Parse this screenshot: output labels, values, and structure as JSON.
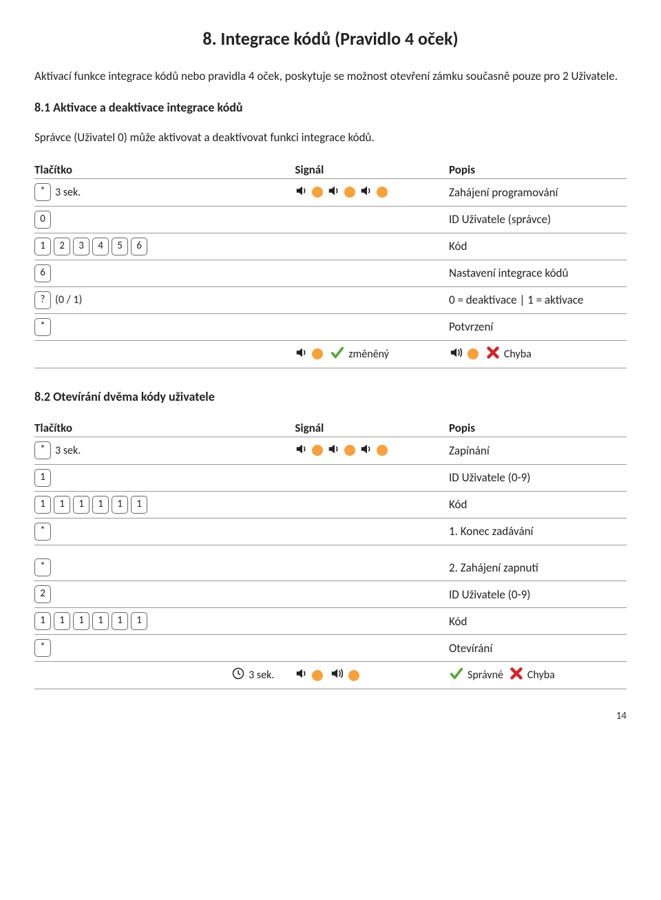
{
  "colors": {
    "dot": "#f7a13d",
    "check": "#5aa63a",
    "cross": "#d2232a",
    "border": "#999999",
    "text": "#222222"
  },
  "page_number": "14",
  "heading": "8. Integrace kódů (Pravidlo 4 oček)",
  "intro": "Aktivací funkce integrace kódů nebo pravidla 4 oček, poskytuje se možnost otevření zámku současně pouze pro 2 Uživatele.",
  "sub81_title": "8.1 Aktivace a deaktivace integrace kódů",
  "sub81_text": "Správce (Uživatel 0) může aktivovat a deaktivovat funkci integrace kódů.",
  "sub82_title": "8.2 Otevírání dvěma kódy uživatele",
  "headers": {
    "button": "Tlačítko",
    "signal": "Signál",
    "description": "Popis"
  },
  "words": {
    "changed": "změněný",
    "error": "Chyba",
    "correct": "Správné",
    "sec3": "3 sek.",
    "zeroone": "(0 / 1)"
  },
  "table1": [
    {
      "keys": [
        "*"
      ],
      "suffix": "3 sek.",
      "sig": "3beep",
      "desc": "Zahájení programování"
    },
    {
      "keys": [
        "0"
      ],
      "desc": "ID Uživatele (správce)"
    },
    {
      "keys": [
        "1",
        "2",
        "3",
        "4",
        "5",
        "6"
      ],
      "desc": "Kód"
    },
    {
      "keys": [
        "6"
      ],
      "desc": "Nastavení integrace kódů"
    },
    {
      "keys": [
        "?"
      ],
      "suffix": "(0 / 1)",
      "desc": "0 = deaktivace | 1 = aktivace"
    },
    {
      "keys": [
        "*"
      ],
      "desc": "Potvrzení"
    }
  ],
  "table1_result": {
    "ok_word": "změněný",
    "err_word": "Chyba"
  },
  "table2a": [
    {
      "keys": [
        "*"
      ],
      "suffix": "3 sek.",
      "sig": "3beep",
      "desc": "Zapínání"
    },
    {
      "keys": [
        "1"
      ],
      "desc": "ID Uživatele (0-9)"
    },
    {
      "keys": [
        "1",
        "1",
        "1",
        "1",
        "1",
        "1"
      ],
      "desc": "Kód"
    },
    {
      "keys": [
        "*"
      ],
      "desc": "1. Konec zadávání"
    }
  ],
  "table2b": [
    {
      "keys": [
        "*"
      ],
      "desc": "2. Zahájení zapnutí"
    },
    {
      "keys": [
        "2"
      ],
      "desc": "ID Uživatele (0-9)"
    },
    {
      "keys": [
        "1",
        "1",
        "1",
        "1",
        "1",
        "1"
      ],
      "desc": "Kód"
    },
    {
      "keys": [
        "*"
      ],
      "desc": "Otevírání"
    }
  ],
  "table2_result": {
    "ok_word": "Správné",
    "err_word": "Chyba"
  }
}
